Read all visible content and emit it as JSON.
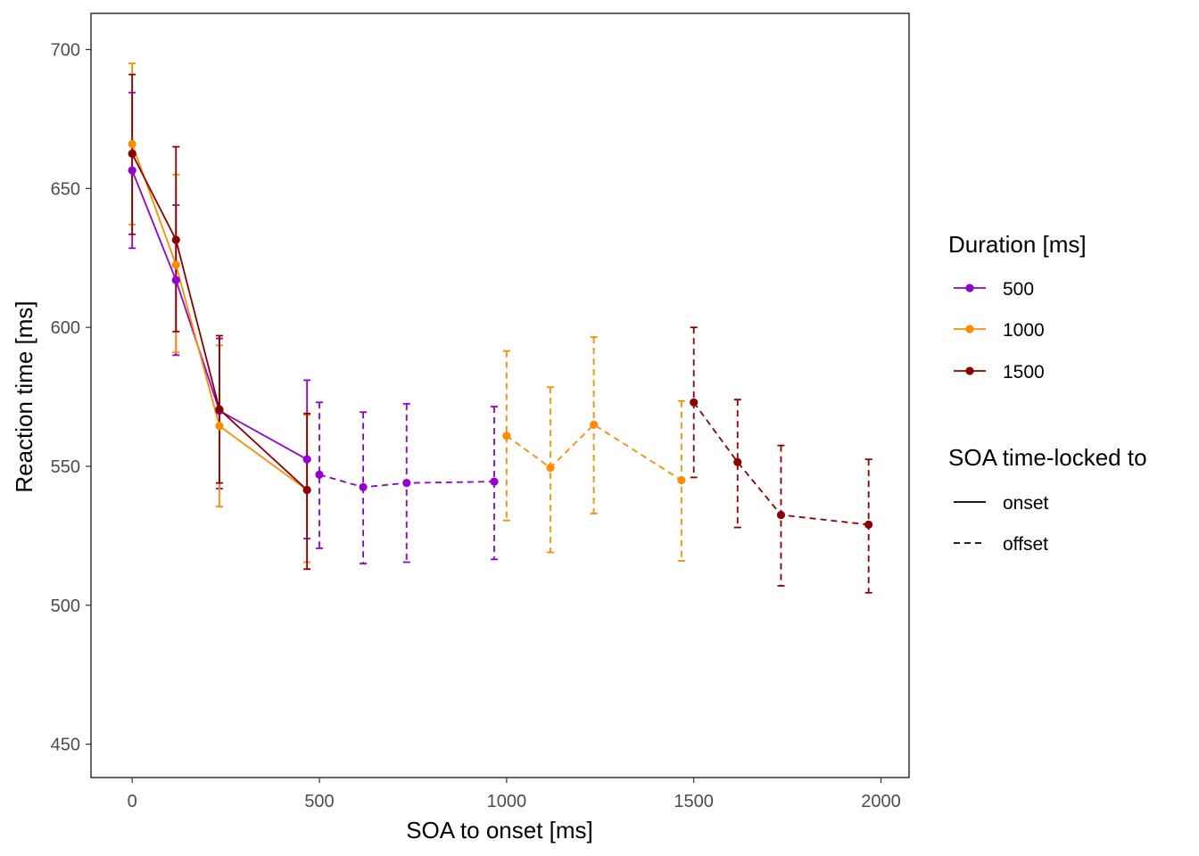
{
  "chart_data": {
    "type": "line",
    "xlabel": "SOA to onset [ms]",
    "ylabel": "Reaction time [ms]",
    "xlim": [
      -110,
      2075
    ],
    "ylim": [
      438,
      713
    ],
    "x_ticks": [
      0,
      500,
      1000,
      1500,
      2000
    ],
    "y_ticks": [
      450,
      500,
      550,
      600,
      650,
      700
    ],
    "grid": false,
    "legend_placement": "right",
    "legends": {
      "color": {
        "title": "Duration [ms]",
        "entries": [
          {
            "label": "500",
            "color": "#9400D3"
          },
          {
            "label": "1000",
            "color": "#FF8C00"
          },
          {
            "label": "1500",
            "color": "#8B0000"
          }
        ]
      },
      "linetype": {
        "title": "SOA time-locked to",
        "entries": [
          {
            "label": "onset",
            "dash": "solid"
          },
          {
            "label": "offset",
            "dash": "dashed"
          }
        ]
      }
    },
    "series": [
      {
        "duration": "500",
        "locked": "onset",
        "color": "#9400D3",
        "dash": "solid",
        "points": [
          {
            "x": 0,
            "y": 656.5,
            "lo": 628.5,
            "hi": 684.5
          },
          {
            "x": 117,
            "y": 617,
            "lo": 590,
            "hi": 644
          },
          {
            "x": 233,
            "y": 570,
            "lo": 542,
            "hi": 596
          },
          {
            "x": 467,
            "y": 552.5,
            "lo": 524,
            "hi": 581
          }
        ]
      },
      {
        "duration": "1000",
        "locked": "onset",
        "color": "#FF8C00",
        "dash": "solid",
        "points": [
          {
            "x": 0,
            "y": 666,
            "lo": 637,
            "hi": 695
          },
          {
            "x": 117,
            "y": 622.5,
            "lo": 591,
            "hi": 655
          },
          {
            "x": 233,
            "y": 564.5,
            "lo": 535.5,
            "hi": 593.5
          },
          {
            "x": 467,
            "y": 541.5,
            "lo": 515.5,
            "hi": 568.5
          }
        ]
      },
      {
        "duration": "1500",
        "locked": "onset",
        "color": "#8B0000",
        "dash": "solid",
        "points": [
          {
            "x": 0,
            "y": 662.5,
            "lo": 633.5,
            "hi": 691
          },
          {
            "x": 117,
            "y": 631.5,
            "lo": 598.5,
            "hi": 665
          },
          {
            "x": 233,
            "y": 570.5,
            "lo": 544,
            "hi": 597
          },
          {
            "x": 467,
            "y": 541.5,
            "lo": 513,
            "hi": 569
          }
        ]
      },
      {
        "duration": "500",
        "locked": "offset",
        "color": "#9400D3",
        "dash": "dashed",
        "points": [
          {
            "x": 500,
            "y": 547,
            "lo": 520.5,
            "hi": 573
          },
          {
            "x": 617,
            "y": 542.5,
            "lo": 515,
            "hi": 569.5
          },
          {
            "x": 733,
            "y": 544,
            "lo": 515.5,
            "hi": 572.5
          },
          {
            "x": 967,
            "y": 544.5,
            "lo": 516.5,
            "hi": 571.5
          }
        ]
      },
      {
        "duration": "1000",
        "locked": "offset",
        "color": "#FF8C00",
        "dash": "dashed",
        "points": [
          {
            "x": 1000,
            "y": 561,
            "lo": 530.5,
            "hi": 591.5
          },
          {
            "x": 1117,
            "y": 549.5,
            "lo": 519,
            "hi": 578.5
          },
          {
            "x": 1233,
            "y": 565,
            "lo": 533,
            "hi": 596.5
          },
          {
            "x": 1467,
            "y": 545,
            "lo": 516,
            "hi": 573.5
          }
        ]
      },
      {
        "duration": "1500",
        "locked": "offset",
        "color": "#8B0000",
        "dash": "dashed",
        "points": [
          {
            "x": 1500,
            "y": 573,
            "lo": 546,
            "hi": 600
          },
          {
            "x": 1617,
            "y": 551.5,
            "lo": 528,
            "hi": 574
          },
          {
            "x": 1733,
            "y": 532.5,
            "lo": 507,
            "hi": 557.5
          },
          {
            "x": 1967,
            "y": 529,
            "lo": 504.5,
            "hi": 552.5
          }
        ]
      }
    ]
  }
}
